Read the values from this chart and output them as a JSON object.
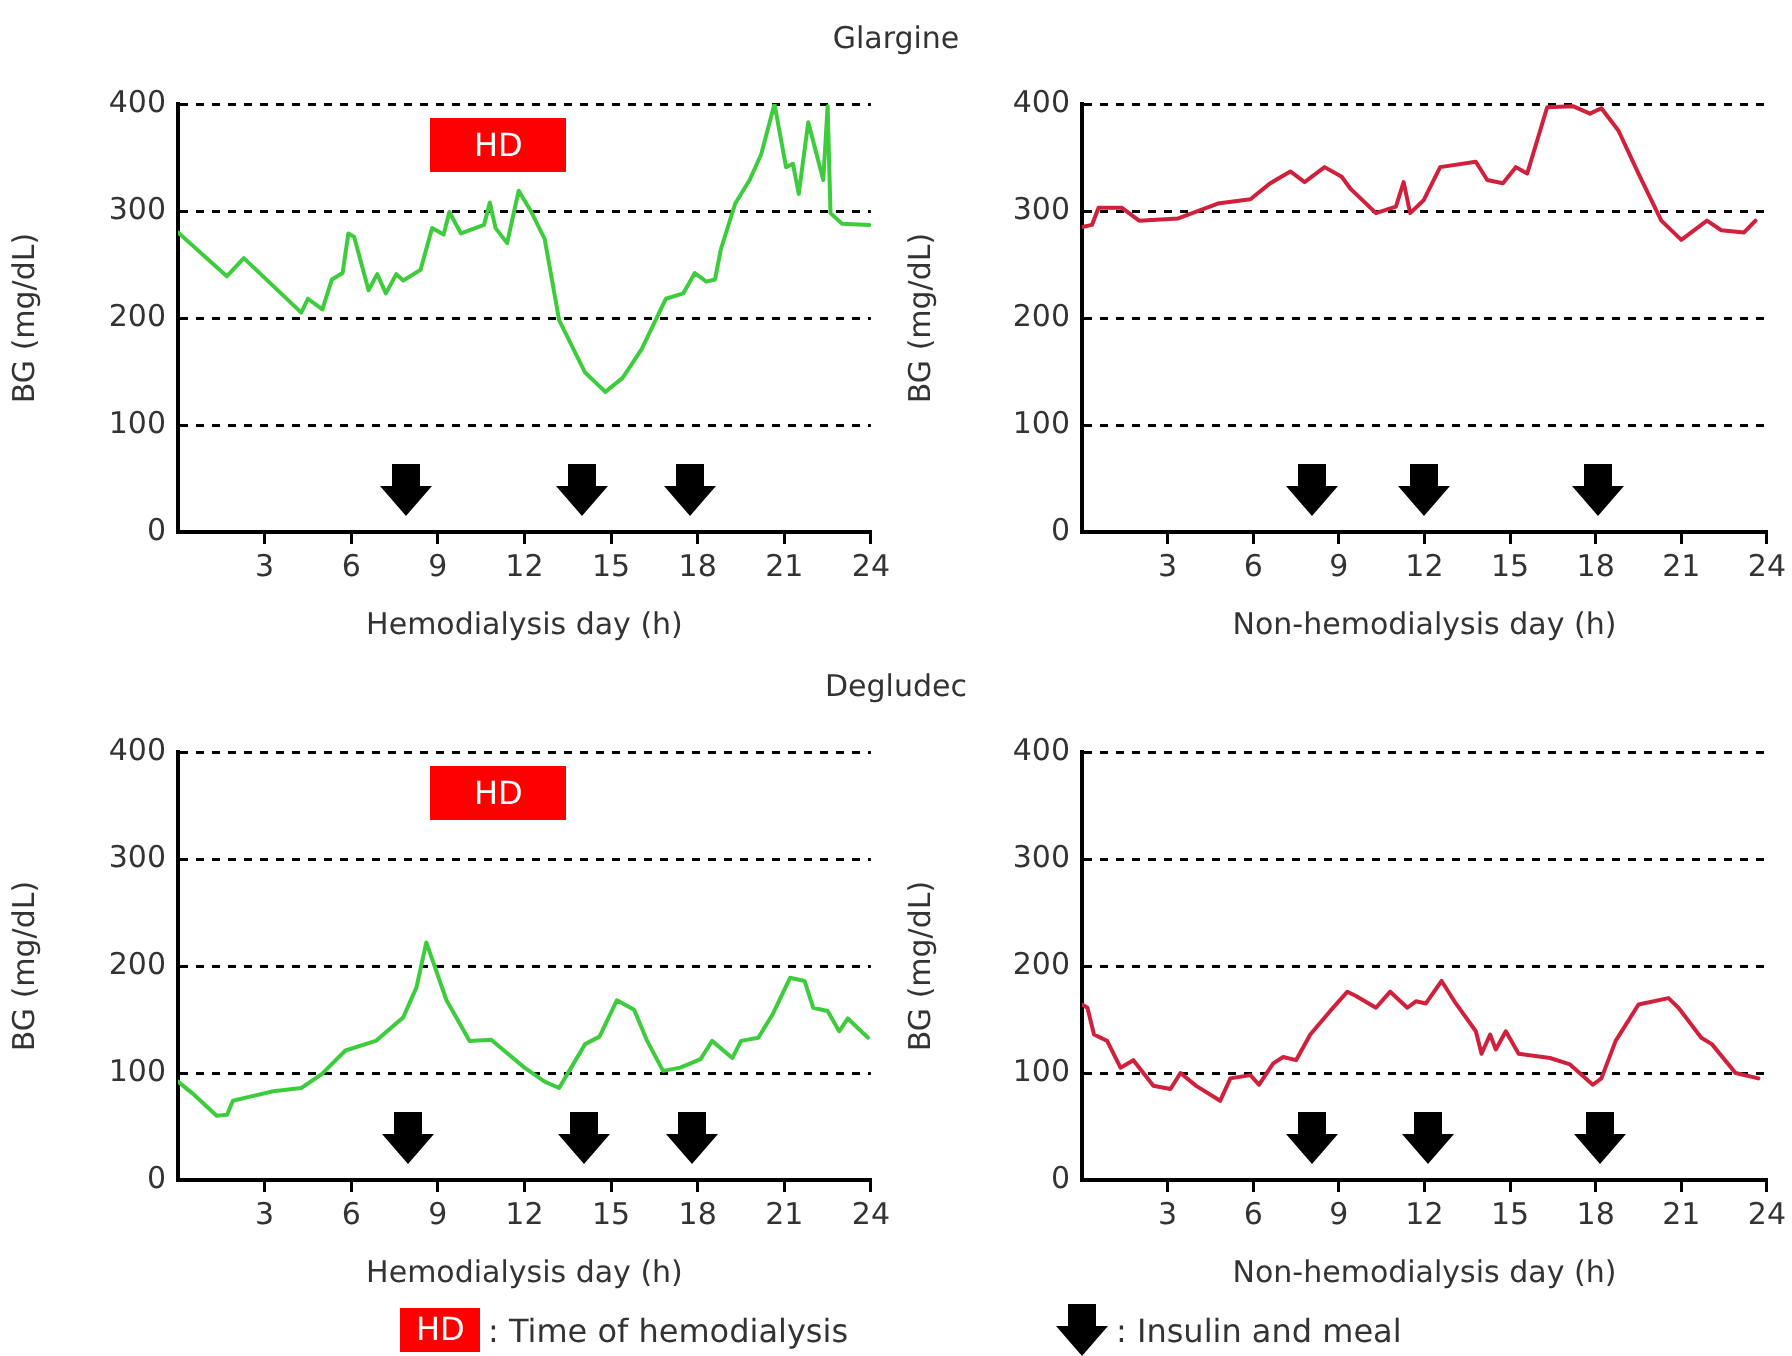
{
  "chart_data": [
    {
      "type": "line",
      "title": "Glargine",
      "xlabel": "Hemodialysis day (h)",
      "ylabel": "BG (mg/dL)",
      "xlim": [
        0,
        24
      ],
      "xticks": [
        3,
        6,
        9,
        12,
        15,
        18,
        21,
        24
      ],
      "ylim": [
        0,
        400
      ],
      "yticks": [
        0,
        100,
        200,
        300,
        400
      ],
      "grid": "y",
      "legend": false,
      "marker": "none",
      "line_style": "solid",
      "annotations": [
        "HD"
      ],
      "series": [
        {
          "color": "#3ccc3c",
          "x": [
            0,
            1.69,
            2.28,
            4.27,
            4.5,
            5,
            5.33,
            5.7,
            5.9,
            6.1,
            6.6,
            6.9,
            7.2,
            7.56,
            7.8,
            8.4,
            8.8,
            9.2,
            9.4,
            9.8,
            10.6,
            10.8,
            11.0,
            11.4,
            11.8,
            12.2,
            12.7,
            13.2,
            14.1,
            14.8,
            15.4,
            16.06,
            16.9,
            17.5,
            17.9,
            18.3,
            18.6,
            18.8,
            19.3,
            19.8,
            20.2,
            20.66,
            21.06,
            21.3,
            21.5,
            21.83,
            22.35,
            22.5,
            22.6,
            23.0,
            23.94
          ],
          "values": [
            280,
            239,
            256,
            205,
            218,
            208,
            236,
            242,
            279,
            276,
            226,
            241,
            223,
            241,
            235,
            245,
            284,
            278,
            299,
            279,
            287,
            308,
            284,
            270,
            319,
            301,
            274,
            198,
            149,
            131,
            144,
            171,
            218,
            223,
            242,
            234,
            236,
            264,
            307,
            329,
            353,
            400,
            341,
            344,
            316,
            383,
            329,
            398,
            298,
            288,
            287
          ]
        }
      ]
    },
    {
      "type": "line",
      "xlabel": "Non-hemodialysis day (h)",
      "ylabel": "BG (mg/dL)",
      "xlim": [
        0,
        24
      ],
      "xticks": [
        3,
        6,
        9,
        12,
        15,
        18,
        21,
        24
      ],
      "ylim": [
        0,
        400
      ],
      "yticks": [
        0,
        100,
        200,
        300,
        400
      ],
      "grid": "y",
      "legend": false,
      "marker": "none",
      "line_style": "solid",
      "series": [
        {
          "color": "#d0203c",
          "x": [
            0,
            0.35,
            0.58,
            1.4,
            2.0,
            3.37,
            4.76,
            5.9,
            6.6,
            7.3,
            7.8,
            8.5,
            9.1,
            9.4,
            10.3,
            11.0,
            11.27,
            11.5,
            11.97,
            12.55,
            13.8,
            14.2,
            14.75,
            15.2,
            15.6,
            16.3,
            17.2,
            17.8,
            18.2,
            18.8,
            19.5,
            20.3,
            21.0,
            21.9,
            22.4,
            23.2,
            23.6
          ],
          "values": [
            285,
            287,
            303,
            303,
            291,
            293,
            307,
            311,
            326,
            337,
            327,
            341,
            332,
            321,
            298,
            304,
            327,
            298,
            310,
            341,
            346,
            329,
            326,
            341,
            335,
            397,
            398,
            391,
            396,
            375,
            335,
            291,
            273,
            291,
            282,
            280,
            291
          ]
        }
      ]
    },
    {
      "type": "line",
      "title": "Degludec",
      "xlabel": "Hemodialysis day (h)",
      "ylabel": "BG (mg/dL)",
      "xlim": [
        0,
        24
      ],
      "xticks": [
        3,
        6,
        9,
        12,
        15,
        18,
        21,
        24
      ],
      "ylim": [
        0,
        400
      ],
      "yticks": [
        0,
        100,
        200,
        300,
        400
      ],
      "grid": "y",
      "legend": false,
      "marker": "none",
      "line_style": "solid",
      "annotations": [
        "HD"
      ],
      "series": [
        {
          "color": "#3ccc3c",
          "x": [
            0,
            0.5,
            1.34,
            1.7,
            1.9,
            3.3,
            4.27,
            4.98,
            5.8,
            6.85,
            7.8,
            8.26,
            8.6,
            9.3,
            10.1,
            10.85,
            12.0,
            12.7,
            13.2,
            14.1,
            14.6,
            15.2,
            15.8,
            16.25,
            16.8,
            17.4,
            18.1,
            18.5,
            19.2,
            19.5,
            20.1,
            20.6,
            21.2,
            21.7,
            22.0,
            22.5,
            22.9,
            23.2,
            23.9
          ],
          "values": [
            92,
            81,
            60,
            61,
            74,
            83,
            86,
            99,
            121,
            130,
            152,
            180,
            222,
            168,
            130,
            131,
            105,
            92,
            86,
            127,
            134,
            168,
            159,
            130,
            102,
            105,
            113,
            130,
            114,
            130,
            133,
            155,
            189,
            186,
            161,
            158,
            139,
            151,
            133
          ]
        }
      ]
    },
    {
      "type": "line",
      "xlabel": "Non-hemodialysis day (h)",
      "ylabel": "BG (mg/dL)",
      "xlim": [
        0,
        24
      ],
      "xticks": [
        3,
        6,
        9,
        12,
        15,
        18,
        21,
        24
      ],
      "ylim": [
        0,
        400
      ],
      "yticks": [
        0,
        100,
        200,
        300,
        400
      ],
      "grid": "y",
      "legend": false,
      "marker": "none",
      "line_style": "solid",
      "annotations": [
        "HD",
        ":  Time of hemodialysis",
        ":  Insulin and meal"
      ],
      "series": [
        {
          "color": "#d0203c",
          "x": [
            0,
            0.19,
            0.42,
            0.88,
            1.35,
            1.8,
            2.5,
            3.1,
            3.45,
            4.0,
            4.84,
            5.2,
            5.9,
            6.2,
            6.7,
            7.05,
            7.5,
            8.0,
            8.7,
            9.3,
            9.6,
            10.3,
            10.8,
            11.4,
            11.7,
            12.05,
            12.6,
            13.1,
            13.8,
            14.0,
            14.3,
            14.5,
            14.85,
            15.3,
            16.4,
            17.1,
            17.9,
            18.2,
            18.7,
            19.5,
            20.55,
            20.9,
            21.7,
            22.07,
            22.9,
            23.7
          ],
          "values": [
            164,
            161,
            136,
            130,
            105,
            112,
            88,
            85,
            100,
            88,
            74,
            95,
            98,
            89,
            109,
            115,
            112,
            136,
            158,
            176,
            172,
            161,
            176,
            161,
            167,
            165,
            186,
            165,
            139,
            118,
            136,
            122,
            139,
            118,
            114,
            108,
            89,
            95,
            130,
            164,
            170,
            161,
            133,
            127,
            100,
            95
          ]
        }
      ]
    }
  ]
}
